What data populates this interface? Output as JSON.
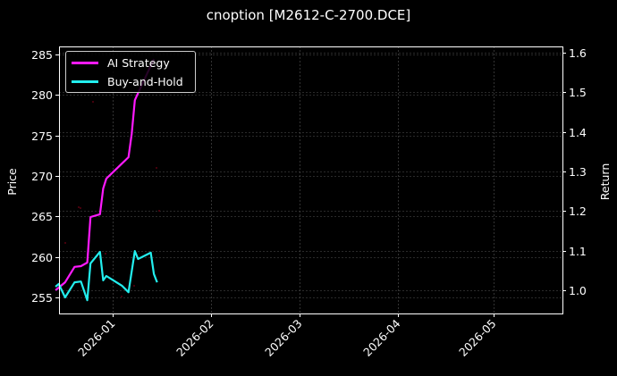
{
  "chart_data": {
    "type": "line",
    "title": "cnoption [M2612-C-2700.DCE]",
    "xlabel": "",
    "ylabel_left": "Price",
    "ylabel_right": "Return",
    "x_ticks": [
      "2026-01",
      "2026-02",
      "2026-03",
      "2026-04",
      "2026-05"
    ],
    "y_left_ticks": [
      255,
      260,
      265,
      270,
      275,
      280,
      285
    ],
    "y_right_ticks": [
      1.0,
      1.1,
      1.2,
      1.3,
      1.4,
      1.5,
      1.6
    ],
    "y_left_lim": [
      253,
      286
    ],
    "y_right_lim": [
      0.94,
      1.62
    ],
    "x_range": [
      "2025-12-14",
      "2026-05-15"
    ],
    "grid": true,
    "legend_position": "upper left",
    "series": [
      {
        "name": "AI Strategy",
        "axis": "right",
        "color": "#ff1aff",
        "points": [
          [
            "2025-12-14",
            1.0
          ],
          [
            "2025-12-17",
            1.02
          ],
          [
            "2025-12-20",
            1.059
          ],
          [
            "2025-12-22",
            1.061
          ],
          [
            "2025-12-24",
            1.07
          ],
          [
            "2025-12-25",
            1.185
          ],
          [
            "2025-12-28",
            1.192
          ],
          [
            "2025-12-29",
            1.257
          ],
          [
            "2025-12-30",
            1.282
          ],
          [
            "2026-01-06",
            1.336
          ],
          [
            "2026-01-07",
            1.395
          ],
          [
            "2026-01-08",
            1.48
          ],
          [
            "2026-01-09",
            1.498
          ],
          [
            "2026-01-14",
            1.584
          ]
        ]
      },
      {
        "name": "Buy-and-Hold",
        "axis": "right",
        "color": "#22eeee",
        "points": [
          [
            "2025-12-14",
            1.009
          ],
          [
            "2025-12-15",
            1.016
          ],
          [
            "2025-12-17",
            0.982
          ],
          [
            "2025-12-20",
            1.02
          ],
          [
            "2025-12-22",
            1.022
          ],
          [
            "2025-12-24",
            0.975
          ],
          [
            "2025-12-25",
            1.068
          ],
          [
            "2025-12-28",
            1.097
          ],
          [
            "2025-12-29",
            1.025
          ],
          [
            "2025-12-30",
            1.036
          ],
          [
            "2026-01-04",
            1.011
          ],
          [
            "2026-01-06",
            0.995
          ],
          [
            "2026-01-08",
            1.099
          ],
          [
            "2026-01-09",
            1.079
          ],
          [
            "2026-01-13",
            1.095
          ],
          [
            "2026-01-14",
            1.041
          ],
          [
            "2026-01-15",
            1.02
          ]
        ]
      }
    ]
  },
  "legend": {
    "items": [
      {
        "label": "AI Strategy",
        "color": "#ff1aff"
      },
      {
        "label": "Buy-and-Hold",
        "color": "#22eeee"
      }
    ]
  }
}
